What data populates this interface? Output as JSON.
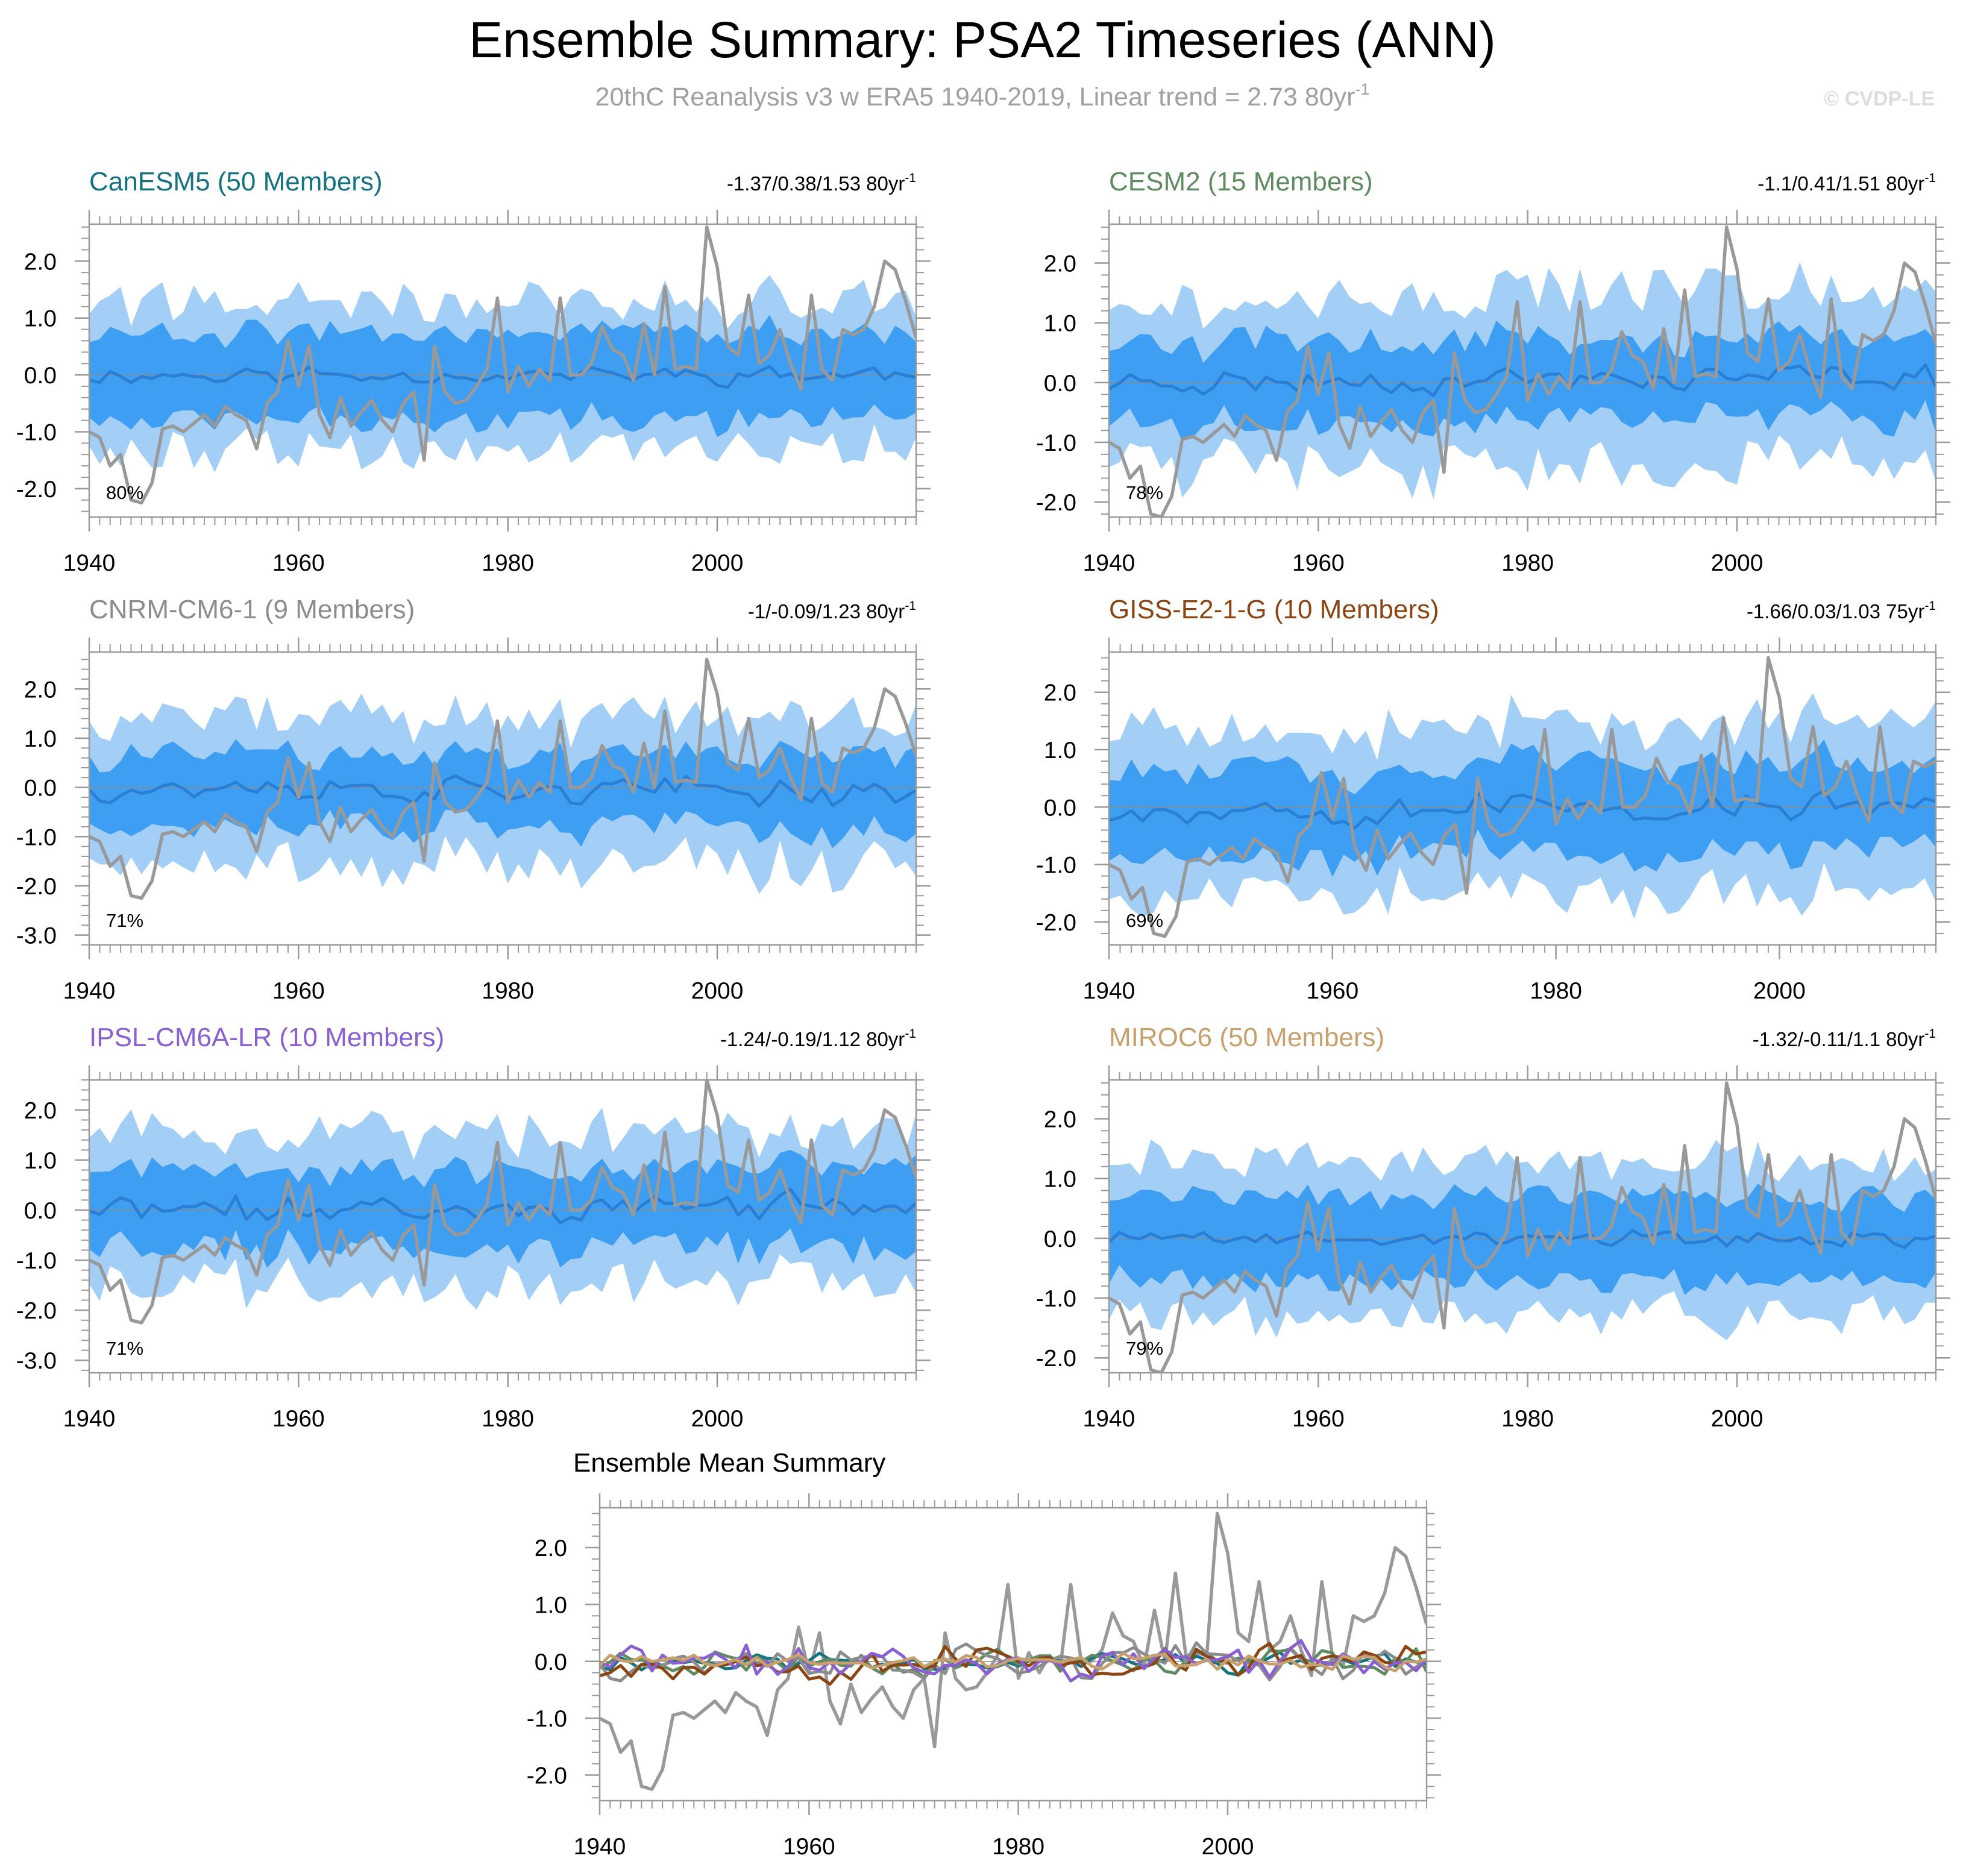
{
  "title": "Ensemble Summary: PSA2 Timeseries (ANN)",
  "subtitle": "20thC Reanalysis v3 w ERA5 1940-2019, Linear trend = 2.73 80yr",
  "subtitle_sup": "-1",
  "watermark": "© CVDP-LE",
  "colors": {
    "band_outer": "#a3cff7",
    "band_inner": "#3d9ef2",
    "ensemble_mean": "#2a7fd4",
    "observations": "#999999",
    "zero_line": "#8a8a8a",
    "axis": "#9a9a9a",
    "title": "#000000",
    "subtitle": "#a0a0a0",
    "watermark": "#dddddd"
  },
  "chart_data": [
    {
      "type": "area",
      "model": "CanESM5 (50 Members)",
      "model_color": "#15727f",
      "stats": "-1.37/0.38/1.53 80yr",
      "stats_sup": "-1",
      "pct": "80%",
      "x_range": [
        1940,
        2019
      ],
      "ylim": [
        -2.5,
        2.65
      ],
      "yticks": [
        2,
        1,
        0,
        -1,
        -2
      ],
      "ytick_labels": [
        "2.0",
        "1.0",
        "0.0",
        "-1.0",
        "-2.0"
      ],
      "xticks": [
        1940,
        1960,
        1980,
        2000
      ],
      "seed": 11,
      "mean_amp": 0.22,
      "inner_w": 0.75,
      "outer_w": 1.3,
      "trend_end": 0.0
    },
    {
      "type": "area",
      "model": "CESM2 (15 Members)",
      "model_color": "#5f8b61",
      "stats": "-1.1/0.41/1.51 80yr",
      "stats_sup": "-1",
      "pct": "78%",
      "x_range": [
        1940,
        2019
      ],
      "ylim": [
        -2.25,
        2.65
      ],
      "yticks": [
        2,
        1,
        0,
        -1,
        -2
      ],
      "ytick_labels": [
        "2.0",
        "1.0",
        "0.0",
        "-1.0",
        "-2.0"
      ],
      "xticks": [
        1940,
        1960,
        1980,
        2000
      ],
      "seed": 23,
      "mean_amp": 0.3,
      "inner_w": 0.7,
      "outer_w": 1.45,
      "trend_end": 0.1
    },
    {
      "type": "area",
      "model": "CNRM-CM6-1 (9 Members)",
      "model_color": "#8c8c8c",
      "stats": "-1/-0.09/1.23 80yr",
      "stats_sup": "-1",
      "pct": "71%",
      "x_range": [
        1940,
        2019
      ],
      "ylim": [
        -3.2,
        2.75
      ],
      "yticks": [
        2,
        1,
        0,
        -1,
        -2,
        -3
      ],
      "ytick_labels": [
        "2.0",
        "1.0",
        "0.0",
        "-1.0",
        "-2.0",
        "-3.0"
      ],
      "xticks": [
        1940,
        1960,
        1980,
        2000
      ],
      "seed": 37,
      "mean_amp": 0.38,
      "inner_w": 0.75,
      "outer_w": 1.5,
      "trend_end": -0.1
    },
    {
      "type": "area",
      "model": "GISS-E2-1-G (10 Members)",
      "model_color": "#8a4512",
      "stats": "-1.66/0.03/1.03 75yr",
      "stats_sup": "-1",
      "pct": "69%",
      "x_range": [
        1940,
        2014
      ],
      "ylim": [
        -2.4,
        2.7
      ],
      "yticks": [
        2,
        1,
        0,
        -1,
        -2
      ],
      "ytick_labels": [
        "2.0",
        "1.0",
        "0.0",
        "-1.0",
        "-2.0"
      ],
      "xticks": [
        1940,
        1960,
        1980,
        2000
      ],
      "seed": 53,
      "mean_amp": 0.42,
      "inner_w": 0.75,
      "outer_w": 1.45,
      "trend_end": 0.0
    },
    {
      "type": "area",
      "model": "IPSL-CM6A-LR (10 Members)",
      "model_color": "#8a5fd1",
      "stats": "-1.24/-0.19/1.12 80yr",
      "stats_sup": "-1",
      "pct": "71%",
      "x_range": [
        1940,
        2019
      ],
      "ylim": [
        -3.25,
        2.6
      ],
      "yticks": [
        2,
        1,
        0,
        -1,
        -2,
        -3
      ],
      "ytick_labels": [
        "2.0",
        "1.0",
        "0.0",
        "-1.0",
        "-2.0",
        "-3.0"
      ],
      "xticks": [
        1940,
        1960,
        1980,
        2000
      ],
      "seed": 71,
      "mean_amp": 0.38,
      "inner_w": 0.8,
      "outer_w": 1.5,
      "trend_end": 0.1
    },
    {
      "type": "area",
      "model": "MIROC6 (50 Members)",
      "model_color": "#c8a06e",
      "stats": "-1.32/-0.11/1.1 80yr",
      "stats_sup": "-1",
      "pct": "79%",
      "x_range": [
        1940,
        2019
      ],
      "ylim": [
        -2.25,
        2.65
      ],
      "yticks": [
        2,
        1,
        0,
        -1,
        -2
      ],
      "ytick_labels": [
        "2.0",
        "1.0",
        "0.0",
        "-1.0",
        "-2.0"
      ],
      "xticks": [
        1940,
        1960,
        1980,
        2000
      ],
      "seed": 89,
      "mean_amp": 0.2,
      "inner_w": 0.7,
      "outer_w": 1.3,
      "trend_end": 0.0
    },
    {
      "type": "line",
      "title": "Ensemble Mean Summary",
      "x_range": [
        1940,
        2019
      ],
      "ylim": [
        -2.45,
        2.7
      ],
      "yticks": [
        2,
        1,
        0,
        -1,
        -2
      ],
      "ytick_labels": [
        "2.0",
        "1.0",
        "0.0",
        "-1.0",
        "-2.0"
      ],
      "xticks": [
        1940,
        1960,
        1980,
        2000
      ],
      "series": [
        {
          "name": "CanESM5",
          "color": "#15727f",
          "seed": 11,
          "amp": 0.22
        },
        {
          "name": "CESM2",
          "color": "#5f8b61",
          "seed": 23,
          "amp": 0.3
        },
        {
          "name": "CNRM-CM6-1",
          "color": "#8c8c8c",
          "seed": 37,
          "amp": 0.38
        },
        {
          "name": "GISS-E2-1-G",
          "color": "#8a4512",
          "seed": 53,
          "amp": 0.42
        },
        {
          "name": "IPSL-CM6A-LR",
          "color": "#8a5fd1",
          "seed": 71,
          "amp": 0.38
        },
        {
          "name": "MIROC6",
          "color": "#c8a06e",
          "seed": 89,
          "amp": 0.2
        }
      ]
    }
  ],
  "observations": {
    "name": "20thC Reanalysis v3 w ERA5",
    "years": [
      1940,
      1941,
      1942,
      1943,
      1944,
      1945,
      1946,
      1947,
      1948,
      1949,
      1950,
      1951,
      1952,
      1953,
      1954,
      1955,
      1956,
      1957,
      1958,
      1959,
      1960,
      1961,
      1962,
      1963,
      1964,
      1965,
      1966,
      1967,
      1968,
      1969,
      1970,
      1971,
      1972,
      1973,
      1974,
      1975,
      1976,
      1977,
      1978,
      1979,
      1980,
      1981,
      1982,
      1983,
      1984,
      1985,
      1986,
      1987,
      1988,
      1989,
      1990,
      1991,
      1992,
      1993,
      1994,
      1995,
      1996,
      1997,
      1998,
      1999,
      2000,
      2001,
      2002,
      2003,
      2004,
      2005,
      2006,
      2007,
      2008,
      2009,
      2010,
      2011,
      2012,
      2013,
      2014,
      2015,
      2016,
      2017,
      2018,
      2019
    ],
    "values": [
      -1.0,
      -1.1,
      -1.6,
      -1.4,
      -2.2,
      -2.25,
      -1.9,
      -0.95,
      -0.9,
      -1.0,
      -0.85,
      -0.7,
      -0.9,
      -0.55,
      -0.7,
      -0.8,
      -1.3,
      -0.5,
      -0.3,
      0.6,
      -0.2,
      0.5,
      -0.7,
      -1.1,
      -0.4,
      -0.9,
      -0.65,
      -0.45,
      -0.8,
      -1.0,
      -0.5,
      -0.3,
      -1.5,
      0.5,
      -0.3,
      -0.5,
      -0.45,
      -0.2,
      0.1,
      1.35,
      -0.3,
      0.15,
      -0.2,
      0.1,
      -0.1,
      1.35,
      0.0,
      0.0,
      0.2,
      0.85,
      0.45,
      0.35,
      -0.1,
      0.9,
      0.0,
      1.55,
      0.1,
      0.15,
      0.1,
      2.6,
      1.9,
      0.5,
      0.35,
      1.4,
      0.2,
      0.35,
      0.8,
      0.2,
      -0.25,
      1.4,
      0.1,
      -0.1,
      0.8,
      0.7,
      0.8,
      1.2,
      2.0,
      1.85,
      1.3,
      0.65
    ]
  }
}
